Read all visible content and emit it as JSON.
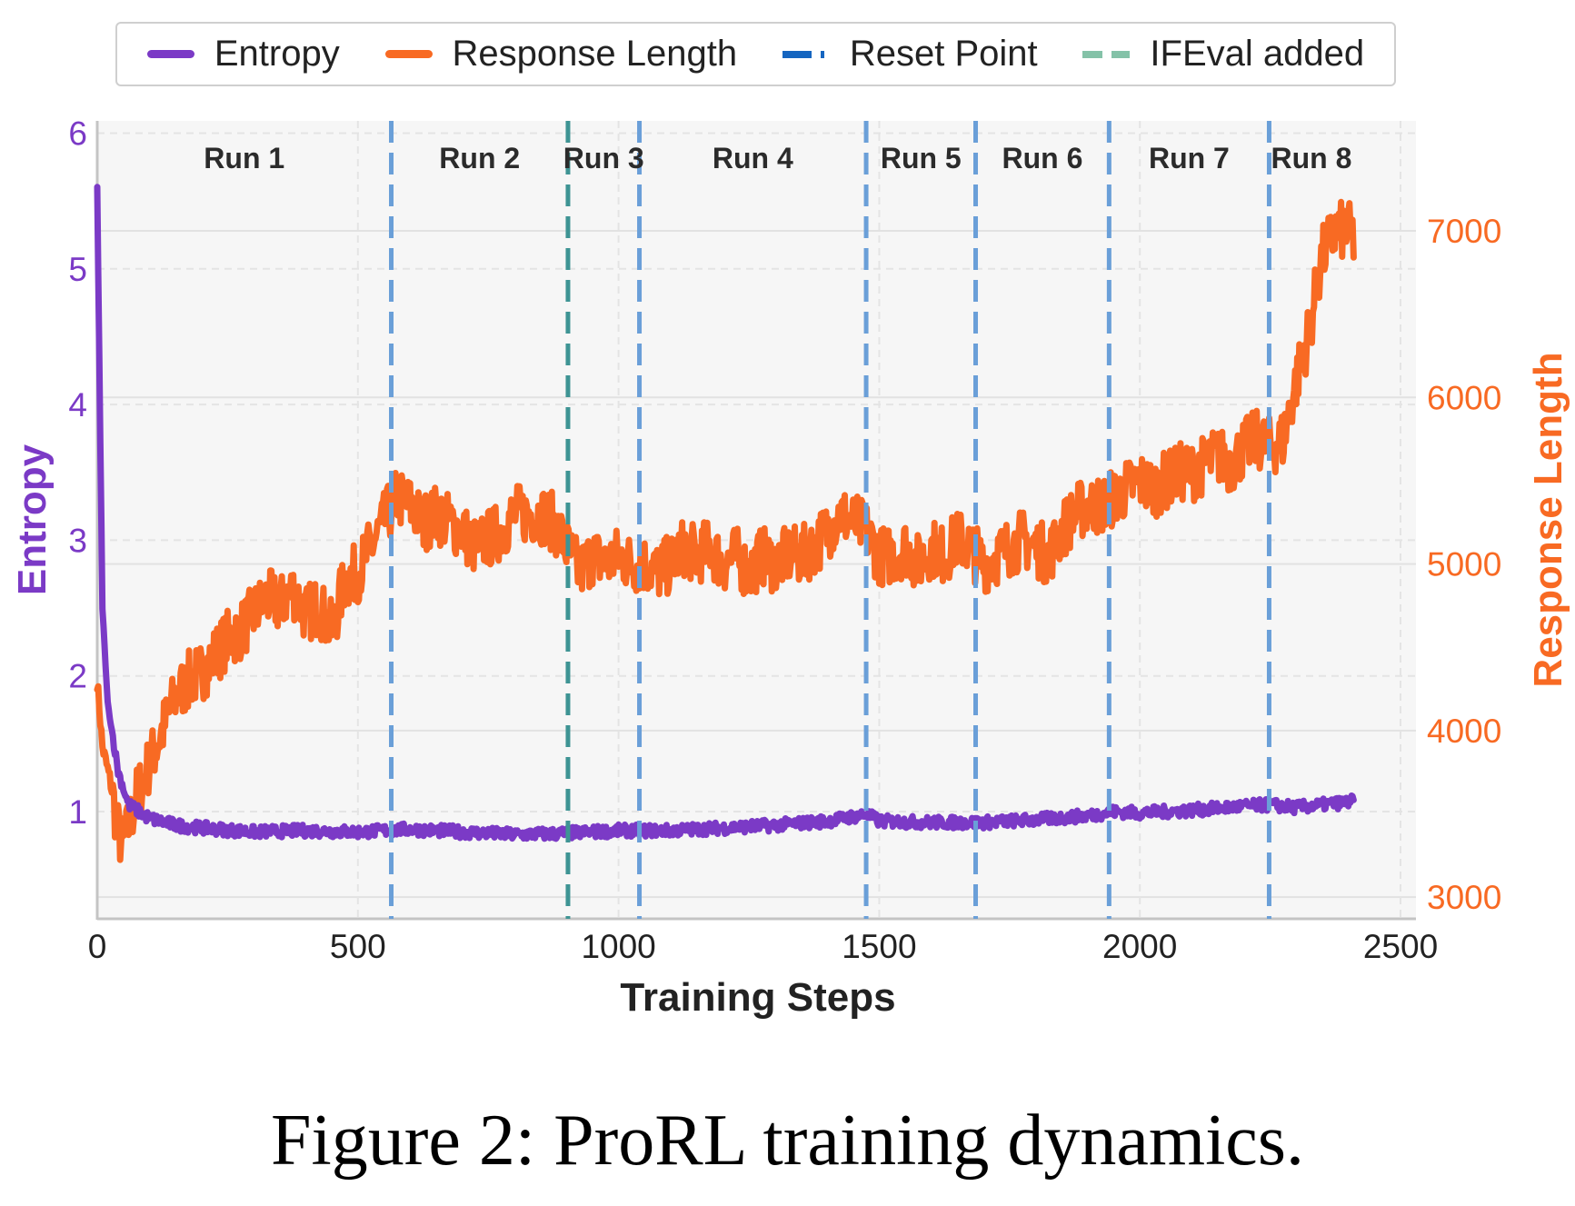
{
  "chart_data": {
    "type": "line",
    "caption": "Figure 2: ProRL training dynamics.",
    "xlabel": "Training Steps",
    "ylabel_left": "Entropy",
    "ylabel_right": "Response Length",
    "xlim": [
      0,
      2540
    ],
    "ylim_left": [
      0.21,
      6.09
    ],
    "ylim_right": [
      2870,
      7660
    ],
    "x_ticks": [
      0,
      500,
      1000,
      1500,
      2000,
      2500
    ],
    "y_ticks_left": [
      1,
      2,
      3,
      4,
      5,
      6
    ],
    "y_ticks_right": [
      3000,
      4000,
      5000,
      6000,
      7000
    ],
    "grid": true,
    "legend": {
      "placement": "top-center-outside",
      "entries": [
        "Entropy",
        "Response Length",
        "Reset Point",
        "IFEval added"
      ]
    },
    "colors": {
      "entropy": "#7B3AC6",
      "response": "#F86A23",
      "reset": "#6A9FD8",
      "reset_legend": "#1565C0",
      "ifeval": "#3E9494",
      "ifeval_legend": "#84C2A8"
    },
    "reset_points": [
      564,
      1040,
      1475,
      1685,
      1941,
      2248
    ],
    "ifeval_added": 903,
    "runs": [
      {
        "label": "Run 1",
        "start": 0,
        "end": 564
      },
      {
        "label": "Run 2",
        "start": 564,
        "end": 903
      },
      {
        "label": "Run 3",
        "start": 903,
        "end": 1040
      },
      {
        "label": "Run 4",
        "start": 1040,
        "end": 1475
      },
      {
        "label": "Run 5",
        "start": 1475,
        "end": 1685
      },
      {
        "label": "Run 6",
        "start": 1685,
        "end": 1941
      },
      {
        "label": "Run 7",
        "start": 1941,
        "end": 2248
      },
      {
        "label": "Run 8",
        "start": 2248,
        "end": 2410
      }
    ],
    "series": [
      {
        "name": "Entropy",
        "axis": "left",
        "x": [
          0,
          5,
          10,
          20,
          40,
          60,
          80,
          100,
          150,
          200,
          300,
          400,
          500,
          600,
          700,
          800,
          900,
          1000,
          1100,
          1200,
          1300,
          1400,
          1475,
          1500,
          1600,
          1700,
          1800,
          1900,
          1950,
          2000,
          2100,
          2200,
          2250,
          2300,
          2400,
          2410
        ],
        "values": [
          5.6,
          4.0,
          2.5,
          1.8,
          1.3,
          1.05,
          1.0,
          0.95,
          0.9,
          0.88,
          0.85,
          0.86,
          0.85,
          0.87,
          0.85,
          0.83,
          0.84,
          0.86,
          0.86,
          0.88,
          0.9,
          0.93,
          0.98,
          0.93,
          0.92,
          0.92,
          0.94,
          0.97,
          1.0,
          0.99,
          1.01,
          1.04,
          1.05,
          1.03,
          1.07,
          1.08
        ]
      },
      {
        "name": "Response Length",
        "axis": "right",
        "x": [
          0,
          10,
          25,
          40,
          50,
          75,
          100,
          125,
          150,
          175,
          200,
          225,
          250,
          275,
          300,
          325,
          350,
          375,
          400,
          425,
          450,
          475,
          500,
          525,
          550,
          575,
          600,
          625,
          650,
          675,
          700,
          725,
          750,
          775,
          800,
          825,
          850,
          875,
          900,
          925,
          950,
          975,
          1000,
          1025,
          1050,
          1075,
          1100,
          1125,
          1150,
          1175,
          1200,
          1225,
          1250,
          1275,
          1300,
          1325,
          1350,
          1375,
          1400,
          1425,
          1450,
          1475,
          1500,
          1525,
          1550,
          1575,
          1600,
          1625,
          1650,
          1675,
          1700,
          1725,
          1750,
          1775,
          1800,
          1825,
          1850,
          1875,
          1900,
          1925,
          1950,
          1975,
          2000,
          2025,
          2050,
          2075,
          2100,
          2125,
          2150,
          2175,
          2200,
          2225,
          2250,
          2275,
          2300,
          2325,
          2350,
          2375,
          2400,
          2410
        ],
        "values": [
          4300,
          3900,
          3700,
          3400,
          3300,
          3600,
          3800,
          4000,
          4200,
          4300,
          4350,
          4450,
          4550,
          4600,
          4700,
          4800,
          4750,
          4850,
          4700,
          4750,
          4600,
          4900,
          4950,
          5100,
          5250,
          5400,
          5350,
          5250,
          5300,
          5250,
          5200,
          5100,
          5150,
          5200,
          5300,
          5300,
          5300,
          5250,
          5100,
          4950,
          5050,
          5000,
          5050,
          5000,
          5000,
          4950,
          5000,
          5100,
          5050,
          5100,
          5000,
          5050,
          4950,
          5050,
          5000,
          5050,
          5050,
          5100,
          5200,
          5300,
          5250,
          5200,
          5050,
          5050,
          5100,
          5000,
          5100,
          5050,
          5150,
          5100,
          5000,
          5050,
          5100,
          5150,
          5100,
          5050,
          5200,
          5300,
          5350,
          5350,
          5400,
          5450,
          5500,
          5450,
          5500,
          5550,
          5550,
          5600,
          5650,
          5600,
          5700,
          5750,
          5700,
          5750,
          6100,
          6400,
          6850,
          7000,
          7000,
          6950
        ]
      }
    ]
  }
}
